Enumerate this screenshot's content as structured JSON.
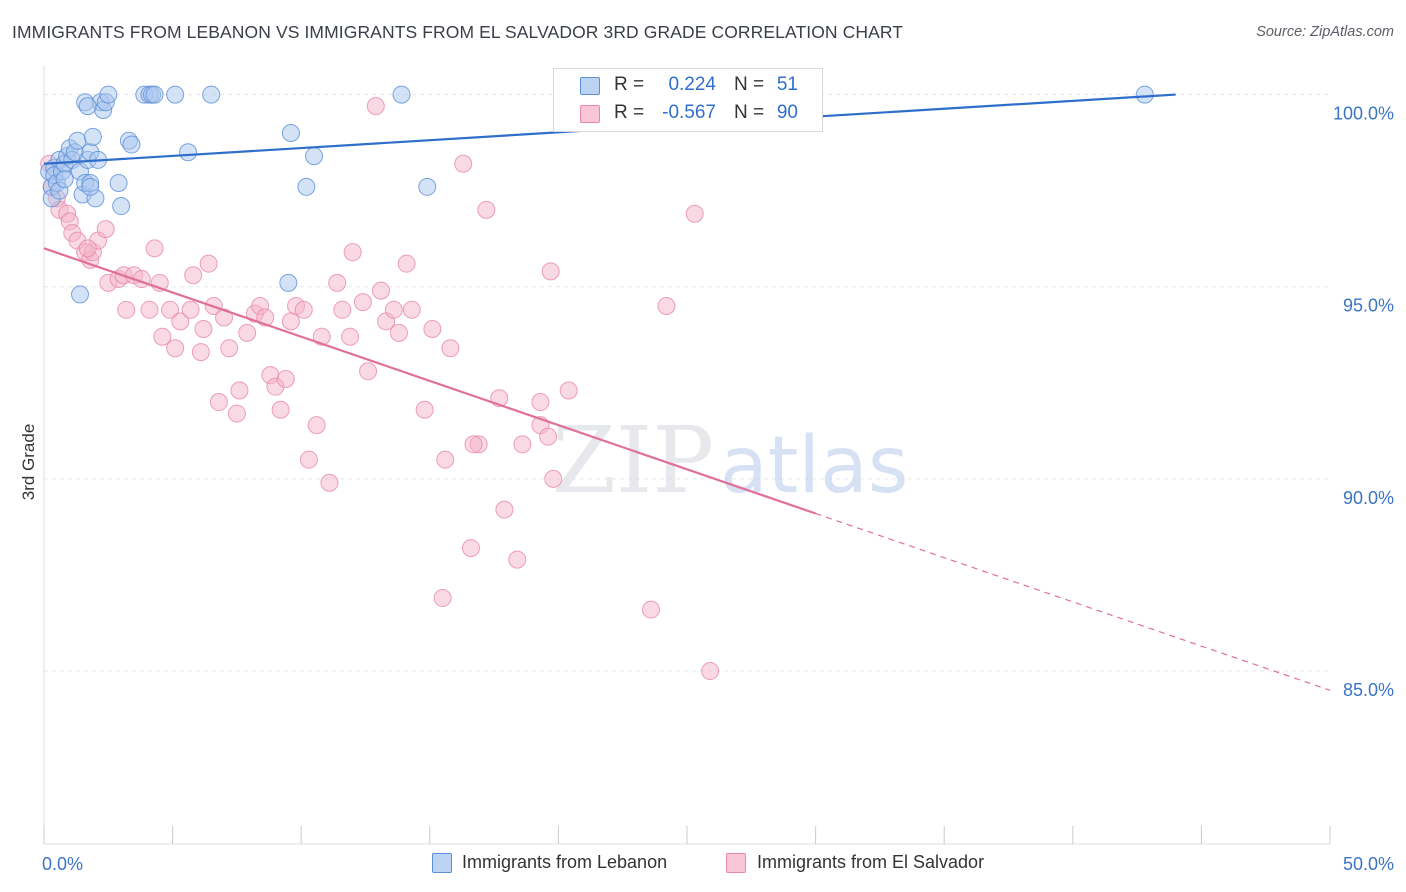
{
  "title": "IMMIGRANTS FROM LEBANON VS IMMIGRANTS FROM EL SALVADOR 3RD GRADE CORRELATION CHART",
  "source": "Source: ZipAtlas.com",
  "watermark": {
    "zip": "ZIP",
    "atlas": "atlas"
  },
  "colors": {
    "lebanon_fill": "#a9c6ee",
    "lebanon_stroke": "#5b8fd8",
    "lebanon_line": "#2f6fcb",
    "salvador_fill": "#f4b3c8",
    "salvador_stroke": "#e889a8",
    "salvador_line": "#e0709a",
    "axis_label": "#3a74c4",
    "grid": "#e3e6ea"
  },
  "legend": {
    "rows": [
      {
        "r_label": "R =",
        "r_value": "0.224",
        "n_label": "N =",
        "n_value": "51"
      },
      {
        "r_label": "R =",
        "r_value": "-0.567",
        "n_label": "N =",
        "n_value": "90"
      }
    ]
  },
  "bottom_legend": {
    "lebanon": "Immigrants from Lebanon",
    "salvador": "Immigrants from El Salvador"
  },
  "chart_data": {
    "type": "scatter",
    "title": "IMMIGRANTS FROM LEBANON VS IMMIGRANTS FROM EL SALVADOR 3RD GRADE CORRELATION CHART",
    "xlabel": "",
    "ylabel": "3rd Grade",
    "xlim": [
      0,
      50
    ],
    "ylim": [
      80.5,
      100.9
    ],
    "x_tick_labels": [
      "0.0%",
      "50.0%"
    ],
    "y_ticks": [
      100,
      95,
      90,
      85
    ],
    "y_tick_labels": [
      "100.0%",
      "95.0%",
      "90.0%",
      "85.0%"
    ],
    "grid": true,
    "legend_position": "top-center",
    "series": [
      {
        "name": "Immigrants from Lebanon",
        "r": 0.224,
        "n": 51,
        "trend": {
          "x": [
            0,
            44
          ],
          "y": [
            98.2,
            100.0
          ],
          "solid_to": 44
        },
        "points": [
          [
            0.2,
            98.0
          ],
          [
            0.3,
            97.6
          ],
          [
            0.3,
            97.3
          ],
          [
            0.4,
            98.1
          ],
          [
            0.4,
            97.9
          ],
          [
            0.5,
            97.7
          ],
          [
            0.6,
            98.3
          ],
          [
            0.6,
            97.5
          ],
          [
            0.7,
            98.0
          ],
          [
            0.8,
            98.2
          ],
          [
            0.8,
            97.8
          ],
          [
            0.9,
            98.4
          ],
          [
            1.0,
            98.6
          ],
          [
            1.1,
            98.3
          ],
          [
            1.2,
            98.5
          ],
          [
            1.3,
            98.8
          ],
          [
            1.4,
            98.0
          ],
          [
            1.5,
            97.4
          ],
          [
            1.6,
            97.7
          ],
          [
            1.7,
            98.3
          ],
          [
            1.8,
            98.5
          ],
          [
            1.9,
            98.9
          ],
          [
            2.0,
            97.3
          ],
          [
            2.1,
            98.3
          ],
          [
            2.2,
            99.8
          ],
          [
            2.3,
            99.6
          ],
          [
            2.4,
            99.8
          ],
          [
            2.5,
            100.0
          ],
          [
            1.4,
            94.8
          ],
          [
            1.6,
            99.8
          ],
          [
            1.7,
            99.7
          ],
          [
            1.8,
            97.7
          ],
          [
            2.9,
            97.7
          ],
          [
            3.0,
            97.1
          ],
          [
            3.3,
            98.8
          ],
          [
            3.4,
            98.7
          ],
          [
            3.9,
            100.0
          ],
          [
            4.1,
            100.0
          ],
          [
            4.2,
            100.0
          ],
          [
            4.3,
            100.0
          ],
          [
            5.1,
            100.0
          ],
          [
            5.6,
            98.5
          ],
          [
            6.5,
            100.0
          ],
          [
            9.6,
            99.0
          ],
          [
            10.2,
            97.6
          ],
          [
            10.5,
            98.4
          ],
          [
            9.5,
            95.1
          ],
          [
            13.9,
            100.0
          ],
          [
            14.9,
            97.6
          ],
          [
            42.8,
            100.0
          ],
          [
            1.8,
            97.6
          ]
        ]
      },
      {
        "name": "Immigrants from El Salvador",
        "r": -0.567,
        "n": 90,
        "trend": {
          "x": [
            0,
            50
          ],
          "y": [
            96.0,
            84.5
          ],
          "solid_to": 30
        },
        "points": [
          [
            0.2,
            98.2
          ],
          [
            0.3,
            97.6
          ],
          [
            0.5,
            97.3
          ],
          [
            0.6,
            97.0
          ],
          [
            0.9,
            96.9
          ],
          [
            1.0,
            96.7
          ],
          [
            1.1,
            96.4
          ],
          [
            1.3,
            96.2
          ],
          [
            1.6,
            95.9
          ],
          [
            1.8,
            95.7
          ],
          [
            1.9,
            95.9
          ],
          [
            2.1,
            96.2
          ],
          [
            2.4,
            96.5
          ],
          [
            2.5,
            95.1
          ],
          [
            2.9,
            95.2
          ],
          [
            3.1,
            95.3
          ],
          [
            3.2,
            94.4
          ],
          [
            3.5,
            95.3
          ],
          [
            3.8,
            95.2
          ],
          [
            4.1,
            94.4
          ],
          [
            4.3,
            96.0
          ],
          [
            4.5,
            95.1
          ],
          [
            4.6,
            93.7
          ],
          [
            4.9,
            94.4
          ],
          [
            5.1,
            93.4
          ],
          [
            5.3,
            94.1
          ],
          [
            5.7,
            94.4
          ],
          [
            5.8,
            95.3
          ],
          [
            6.1,
            93.3
          ],
          [
            6.2,
            93.9
          ],
          [
            6.4,
            95.6
          ],
          [
            6.6,
            94.5
          ],
          [
            6.8,
            92.0
          ],
          [
            7.0,
            94.2
          ],
          [
            7.2,
            93.4
          ],
          [
            7.5,
            91.7
          ],
          [
            7.6,
            92.3
          ],
          [
            7.9,
            93.8
          ],
          [
            8.2,
            94.3
          ],
          [
            8.4,
            94.5
          ],
          [
            8.6,
            94.2
          ],
          [
            8.8,
            92.7
          ],
          [
            9.0,
            92.4
          ],
          [
            9.2,
            91.8
          ],
          [
            9.4,
            92.6
          ],
          [
            9.6,
            94.1
          ],
          [
            9.8,
            94.5
          ],
          [
            10.1,
            94.4
          ],
          [
            10.3,
            90.5
          ],
          [
            10.6,
            91.4
          ],
          [
            10.8,
            93.7
          ],
          [
            11.1,
            89.9
          ],
          [
            11.4,
            95.1
          ],
          [
            11.6,
            94.4
          ],
          [
            11.9,
            93.7
          ],
          [
            12.0,
            95.9
          ],
          [
            12.4,
            94.6
          ],
          [
            12.6,
            92.8
          ],
          [
            12.9,
            99.7
          ],
          [
            13.1,
            94.9
          ],
          [
            13.3,
            94.1
          ],
          [
            13.6,
            94.4
          ],
          [
            13.8,
            93.8
          ],
          [
            14.1,
            95.6
          ],
          [
            14.3,
            94.4
          ],
          [
            14.8,
            91.8
          ],
          [
            15.1,
            93.9
          ],
          [
            15.5,
            86.9
          ],
          [
            15.6,
            90.5
          ],
          [
            15.8,
            93.4
          ],
          [
            16.3,
            98.2
          ],
          [
            16.6,
            88.2
          ],
          [
            16.9,
            90.9
          ],
          [
            17.2,
            97.0
          ],
          [
            17.9,
            89.2
          ],
          [
            17.7,
            92.1
          ],
          [
            18.4,
            87.9
          ],
          [
            18.6,
            90.9
          ],
          [
            19.3,
            92.0
          ],
          [
            19.3,
            91.4
          ],
          [
            19.6,
            91.1
          ],
          [
            19.8,
            90.0
          ],
          [
            19.7,
            95.4
          ],
          [
            20.4,
            92.3
          ],
          [
            23.6,
            86.6
          ],
          [
            24.2,
            94.5
          ],
          [
            25.3,
            96.9
          ],
          [
            25.9,
            85.0
          ],
          [
            16.7,
            90.9
          ],
          [
            1.7,
            96.0
          ]
        ]
      }
    ]
  }
}
